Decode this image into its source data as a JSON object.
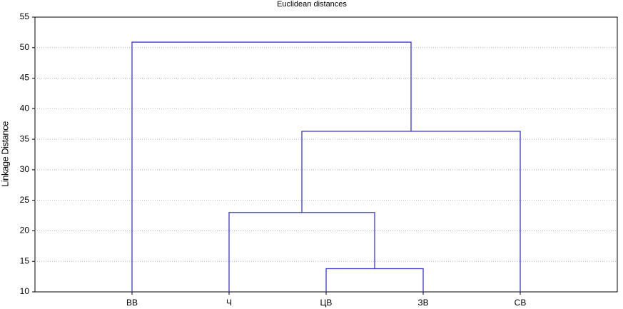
{
  "chart_data": {
    "type": "dendrogram",
    "title": "Euclidean distances",
    "y_label": "Linkage Distance",
    "categories": [
      "BB",
      "Ч",
      "ЦВ",
      "ЗВ",
      "СВ"
    ],
    "links": [
      {
        "a": 2,
        "b": 3,
        "height": 13.8
      },
      {
        "a": 1,
        "b": 5,
        "height": 23
      },
      {
        "a": 6,
        "b": 4,
        "height": 36.3
      },
      {
        "a": 0,
        "b": 7,
        "height": 50.9
      }
    ],
    "color": "#3a3acc",
    "ylim": [
      10,
      55
    ],
    "yticks": [
      10,
      15,
      20,
      25,
      30,
      35,
      40,
      45,
      50,
      55
    ],
    "grid": true
  }
}
